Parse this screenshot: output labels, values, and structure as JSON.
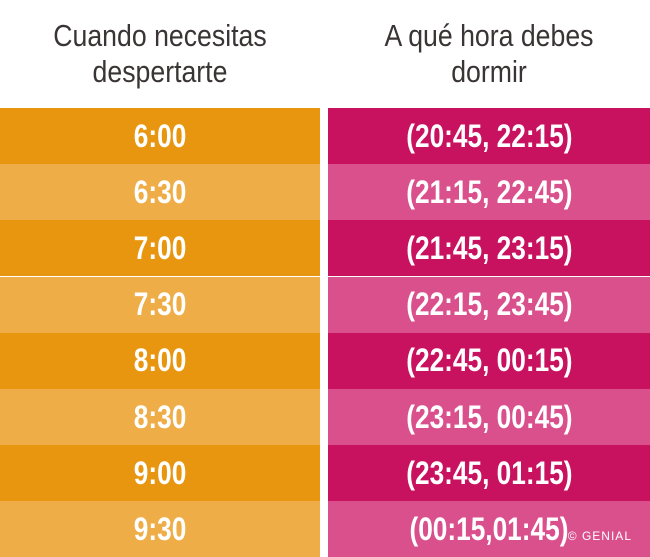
{
  "table": {
    "header": [
      "Cuando necesitas despertarte",
      "A qué hora debes dormir"
    ],
    "rows": [
      [
        "6:00",
        "(20:45, 22:15)"
      ],
      [
        "6:30",
        "(21:15, 22:45)"
      ],
      [
        "7:00",
        "(21:45, 23:15)"
      ],
      [
        "7:30",
        "(22:15, 23:45)"
      ],
      [
        "8:00",
        "(22:45, 00:15)"
      ],
      [
        "8:30",
        "(23:15, 00:45)"
      ],
      [
        "9:00",
        "(23:45, 01:15)"
      ],
      [
        "9:30",
        "(00:15,01:45)"
      ]
    ]
  },
  "watermark": "© GENIAL"
}
